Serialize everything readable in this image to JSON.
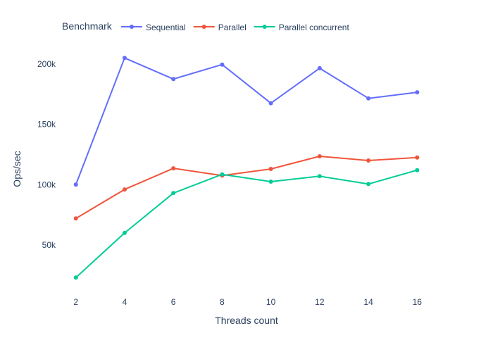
{
  "chart_data": {
    "type": "line",
    "title": "",
    "xlabel": "Threads count",
    "ylabel": "Ops/sec",
    "legend_title": "Benchmark",
    "legend_position": "top",
    "grid": false,
    "x": [
      2,
      4,
      6,
      8,
      10,
      12,
      14,
      16
    ],
    "x_tick_labels": [
      "2",
      "4",
      "6",
      "8",
      "10",
      "12",
      "14",
      "16"
    ],
    "xlim": [
      1.2,
      16.8
    ],
    "y_ticks": [
      50000,
      100000,
      150000,
      200000
    ],
    "y_tick_labels": [
      "50k",
      "100k",
      "150k",
      "200k"
    ],
    "ylim": [
      8000,
      218000
    ],
    "series": [
      {
        "name": "Sequential",
        "color": "#636efa",
        "values": [
          100000,
          205000,
          187500,
          199500,
          167500,
          196500,
          171500,
          176500
        ]
      },
      {
        "name": "Parallel",
        "color": "#ef553b",
        "values": [
          72000,
          96000,
          113500,
          107500,
          113000,
          123500,
          120000,
          122500
        ]
      },
      {
        "name": "Parallel concurrent",
        "color": "#00cc96",
        "values": [
          23000,
          60000,
          93000,
          108500,
          102500,
          107000,
          100500,
          112000
        ]
      }
    ]
  }
}
